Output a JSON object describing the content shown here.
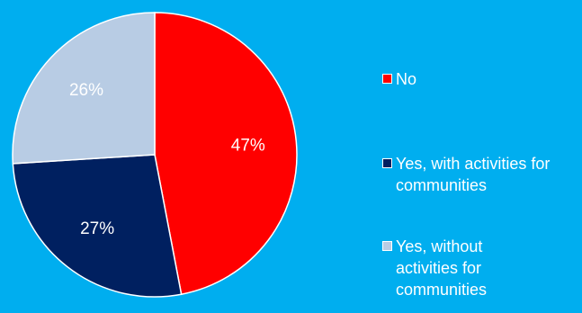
{
  "chart_data": {
    "type": "pie",
    "title": "",
    "legend_position": "right",
    "slices": [
      {
        "label": "No",
        "value": 47,
        "display": "47%",
        "color": "#FF0000",
        "label_color": "#FFFFFF"
      },
      {
        "label": "Yes, with activities for communities",
        "value": 27,
        "display": "27%",
        "color": "#002060",
        "label_color": "#FFFFFF"
      },
      {
        "label": "Yes, without activities for communities",
        "value": 26,
        "display": "26%",
        "color": "#B8CCE4",
        "label_color": "#FFFFFF"
      }
    ]
  },
  "colors": {
    "background": "#00AEEF",
    "slice_border": "#FFFFFF",
    "legend_text": "#FFFFFF"
  }
}
